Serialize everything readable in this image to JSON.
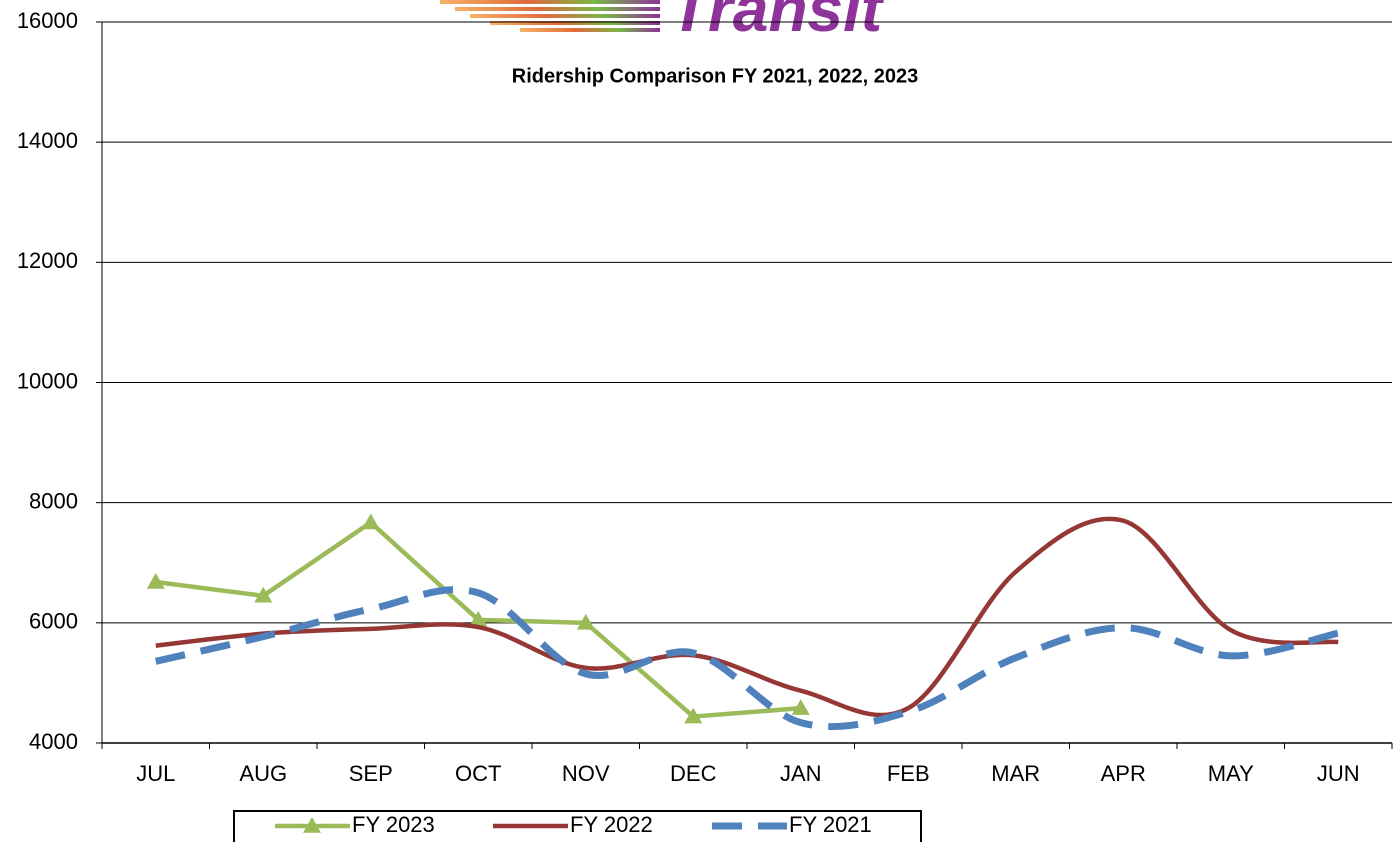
{
  "chart_data": {
    "type": "line",
    "logo": "Transit",
    "title": "Ridership Comparison  FY 2021, 2022, 2023",
    "categories": [
      "JUL",
      "AUG",
      "SEP",
      "OCT",
      "NOV",
      "DEC",
      "JAN",
      "FEB",
      "MAR",
      "APR",
      "MAY",
      "JUN"
    ],
    "series": [
      {
        "name": "FY 2023",
        "color": "#9bbb59",
        "smooth": false,
        "marker": "triangle",
        "dash": false,
        "values": [
          6680,
          6450,
          7670,
          6050,
          6000,
          4440,
          4580,
          null,
          null,
          null,
          null,
          null
        ]
      },
      {
        "name": "FY 2022",
        "color": "#953735",
        "smooth": true,
        "marker": null,
        "dash": false,
        "values": [
          5620,
          5820,
          5900,
          5930,
          5250,
          5460,
          4870,
          4580,
          6850,
          7700,
          5880,
          5680
        ]
      },
      {
        "name": "FY 2021",
        "color": "#4f81bd",
        "smooth": true,
        "marker": null,
        "dash": true,
        "values": [
          5360,
          5770,
          6230,
          6500,
          5150,
          5500,
          4340,
          4520,
          5420,
          5920,
          5450,
          5830
        ]
      }
    ],
    "ylim": [
      4000,
      16000
    ],
    "yticks": [
      4000,
      6000,
      8000,
      10000,
      12000,
      14000,
      16000
    ],
    "grid": true,
    "legend": "bottom"
  }
}
